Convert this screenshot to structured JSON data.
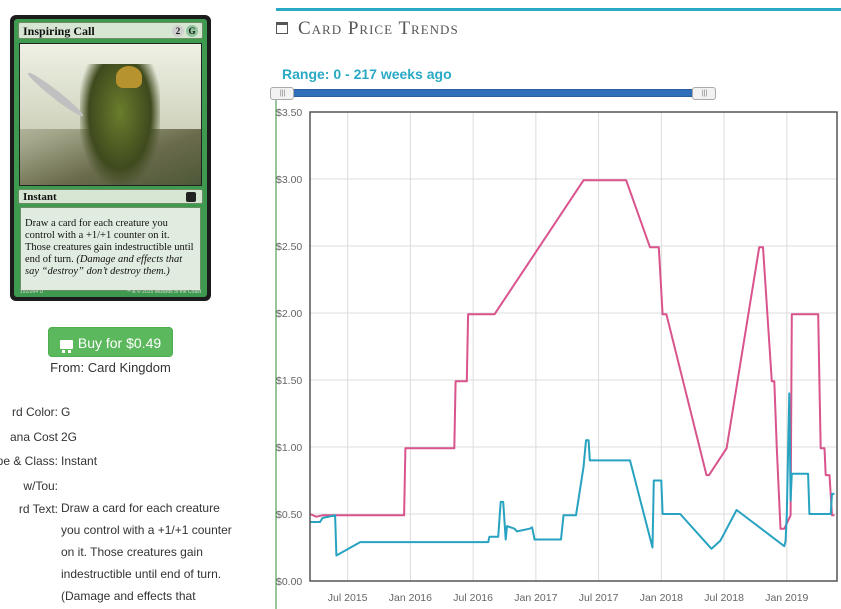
{
  "card": {
    "name": "Inspiring Call",
    "mana_cost_symbols": [
      "2",
      "G"
    ],
    "type_line": "Instant",
    "rules_text": "Draw a card for each creature you control with a +1/+1 counter on it. Those creatures gain indestructible until end of turn.",
    "flavor_reminder": "(Damage and effects that say “destroy” don’t destroy them.)",
    "collector_number": "191/264 U",
    "copyright": "™ & © 2015 Wizards of the Coast"
  },
  "buy": {
    "label": "Buy for $0.49",
    "icon": "shopping-cart-icon",
    "from": "From: Card Kingdom",
    "color": "#5cb85c"
  },
  "details": [
    {
      "label": "rd Color:",
      "value": "G"
    },
    {
      "label": "ana Cost",
      "value": "2G"
    },
    {
      "label": "pe & Class:",
      "value": "Instant"
    },
    {
      "label": "w/Tou:",
      "value": ""
    },
    {
      "label": "rd Text:",
      "value": "Draw a card for each creature you control with a +1/+1 counter on it. Those creatures gain indestructible until end of turn. (Damage and effects that"
    }
  ],
  "panel": {
    "title": "Card Price Trends",
    "icon": "calendar-icon",
    "accent": "#29a9c4"
  },
  "range": {
    "label": "Range: 0 - 217 weeks ago",
    "min": 0,
    "max": 217
  },
  "chart_data": {
    "type": "line",
    "y_ticks": [
      "$0.00",
      "$0.50",
      "$1.00",
      "$1.50",
      "$2.00",
      "$2.50",
      "$3.00",
      "$3.50"
    ],
    "ylim": [
      0,
      3.5
    ],
    "x_ticks": [
      {
        "label": "Jul 2015",
        "t": 2015.5
      },
      {
        "label": "Jan 2016",
        "t": 2016.0
      },
      {
        "label": "Jul 2016",
        "t": 2016.5
      },
      {
        "label": "Jan 2017",
        "t": 2017.0
      },
      {
        "label": "Jul 2017",
        "t": 2017.5
      },
      {
        "label": "Jan 2018",
        "t": 2018.0
      },
      {
        "label": "Jul 2018",
        "t": 2018.5
      },
      {
        "label": "Jan 2019",
        "t": 2019.0
      }
    ],
    "xlim": [
      2015.2,
      2019.4
    ],
    "grid": true,
    "series": [
      {
        "color": "#d9538d",
        "points": [
          [
            2015.2,
            0.5
          ],
          [
            2015.25,
            0.48
          ],
          [
            2015.3,
            0.49
          ],
          [
            2015.95,
            0.49
          ],
          [
            2015.96,
            0.99
          ],
          [
            2016.35,
            0.99
          ],
          [
            2016.36,
            1.49
          ],
          [
            2016.45,
            1.49
          ],
          [
            2016.46,
            1.99
          ],
          [
            2016.67,
            1.99
          ],
          [
            2017.38,
            2.99
          ],
          [
            2017.72,
            2.99
          ],
          [
            2017.91,
            2.49
          ],
          [
            2017.98,
            2.49
          ],
          [
            2018.01,
            1.99
          ],
          [
            2018.04,
            1.99
          ],
          [
            2018.36,
            0.79
          ],
          [
            2018.38,
            0.79
          ],
          [
            2018.52,
            0.99
          ],
          [
            2018.78,
            2.49
          ],
          [
            2018.81,
            2.49
          ],
          [
            2018.88,
            1.49
          ],
          [
            2018.9,
            1.49
          ],
          [
            2018.92,
            0.99
          ],
          [
            2018.95,
            0.39
          ],
          [
            2018.98,
            0.39
          ],
          [
            2019.03,
            0.49
          ],
          [
            2019.04,
            1.99
          ],
          [
            2019.25,
            1.99
          ],
          [
            2019.26,
            1.49
          ],
          [
            2019.27,
            0.99
          ],
          [
            2019.3,
            0.99
          ],
          [
            2019.31,
            0.79
          ],
          [
            2019.34,
            0.79
          ],
          [
            2019.36,
            0.49
          ],
          [
            2019.38,
            0.49
          ]
        ]
      },
      {
        "color": "#27a3c1",
        "points": [
          [
            2015.2,
            0.44
          ],
          [
            2015.28,
            0.44
          ],
          [
            2015.3,
            0.47
          ],
          [
            2015.4,
            0.49
          ],
          [
            2015.41,
            0.19
          ],
          [
            2015.6,
            0.29
          ],
          [
            2016.45,
            0.29
          ],
          [
            2016.62,
            0.29
          ],
          [
            2016.63,
            0.33
          ],
          [
            2016.7,
            0.33
          ],
          [
            2016.72,
            0.59
          ],
          [
            2016.74,
            0.59
          ],
          [
            2016.76,
            0.31
          ],
          [
            2016.77,
            0.41
          ],
          [
            2016.83,
            0.39
          ],
          [
            2016.85,
            0.37
          ],
          [
            2016.95,
            0.39
          ],
          [
            2016.97,
            0.4
          ],
          [
            2016.99,
            0.31
          ],
          [
            2017.2,
            0.31
          ],
          [
            2017.22,
            0.49
          ],
          [
            2017.32,
            0.49
          ],
          [
            2017.38,
            0.85
          ],
          [
            2017.4,
            1.05
          ],
          [
            2017.42,
            1.05
          ],
          [
            2017.43,
            0.9
          ],
          [
            2017.75,
            0.9
          ],
          [
            2017.93,
            0.25
          ],
          [
            2017.94,
            0.75
          ],
          [
            2018.0,
            0.75
          ],
          [
            2018.01,
            0.5
          ],
          [
            2018.15,
            0.5
          ],
          [
            2018.4,
            0.24
          ],
          [
            2018.47,
            0.3
          ],
          [
            2018.6,
            0.53
          ],
          [
            2018.98,
            0.26
          ],
          [
            2018.99,
            0.3
          ],
          [
            2019.0,
            0.5
          ],
          [
            2019.02,
            1.4
          ],
          [
            2019.03,
            0.6
          ],
          [
            2019.04,
            0.8
          ],
          [
            2019.17,
            0.8
          ],
          [
            2019.18,
            0.5
          ],
          [
            2019.35,
            0.5
          ],
          [
            2019.36,
            0.65
          ],
          [
            2019.38,
            0.65
          ]
        ]
      }
    ]
  }
}
